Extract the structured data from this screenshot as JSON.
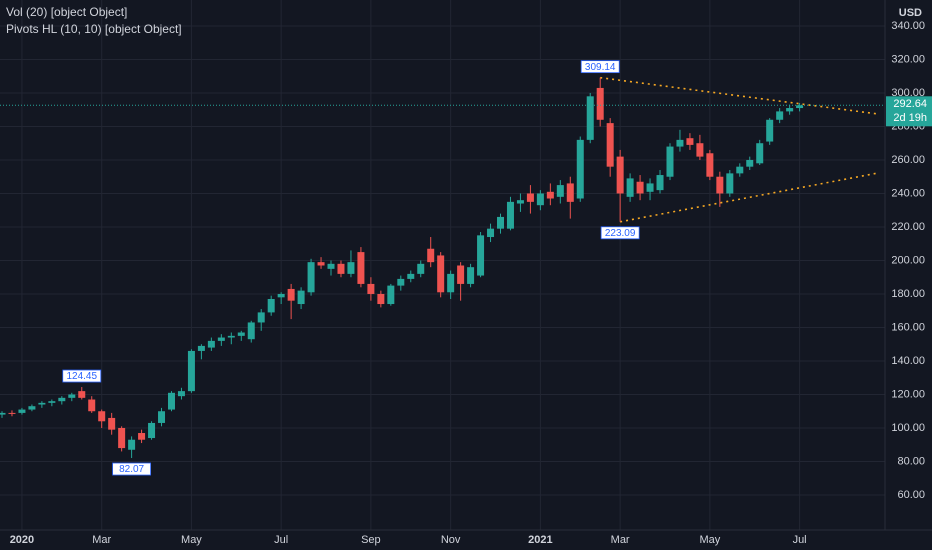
{
  "chart_data": {
    "type": "candlestick",
    "indicators": [
      "Vol (20) [object Object]",
      "Pivots HL (10, 10) [object Object]"
    ],
    "pivot_length": [
      10,
      10
    ],
    "currency": "USD",
    "countdown": "2d 19h",
    "categories": [
      null,
      null,
      "2020",
      null,
      null,
      null,
      null,
      null,
      null,
      null,
      "Mar",
      null,
      null,
      null,
      null,
      null,
      null,
      null,
      null,
      "May",
      null,
      null,
      null,
      null,
      null,
      null,
      null,
      null,
      "Jul",
      null,
      null,
      null,
      null,
      null,
      null,
      null,
      null,
      "Sep",
      null,
      null,
      null,
      null,
      null,
      null,
      null,
      "Nov",
      null,
      null,
      null,
      null,
      null,
      null,
      null,
      null,
      "2021",
      null,
      null,
      null,
      null,
      null,
      null,
      null,
      "Mar",
      null,
      null,
      null,
      null,
      null,
      null,
      null,
      null,
      "May",
      null,
      null,
      null,
      null,
      null,
      null,
      null,
      null,
      "Jul"
    ],
    "open": [
      108,
      109,
      109,
      111,
      114,
      115,
      116,
      118,
      122,
      117,
      110,
      106,
      100,
      87,
      97,
      94,
      103,
      111,
      119,
      122,
      146,
      148,
      152,
      154,
      155,
      153,
      163,
      169,
      178,
      183,
      174,
      181,
      199,
      195,
      198,
      192,
      205,
      186,
      180,
      174,
      185,
      189,
      192,
      207,
      203,
      181,
      197,
      186,
      191,
      214,
      219,
      219,
      234,
      240,
      233,
      241,
      238,
      246,
      237,
      272,
      303,
      282,
      262,
      238,
      247,
      241,
      242,
      250,
      268,
      273,
      270,
      264,
      250,
      240,
      252,
      256,
      258,
      271,
      284,
      289,
      291
    ],
    "high": [
      110,
      110.5,
      112,
      114,
      116,
      117,
      119,
      121,
      124.45,
      119,
      111,
      109,
      101,
      95,
      99,
      104,
      112,
      122,
      124,
      147,
      150,
      154,
      156,
      157,
      158,
      164,
      171,
      179,
      181,
      186,
      184,
      201,
      202,
      200,
      200,
      206,
      208,
      190,
      182,
      186,
      191,
      194,
      200,
      214,
      205,
      194,
      199,
      198,
      217,
      222,
      228,
      238,
      240,
      245,
      242,
      246,
      248,
      250,
      274,
      300,
      309.14,
      285,
      266,
      252,
      251,
      249,
      254,
      270,
      278,
      276,
      275,
      266,
      253,
      254,
      258,
      262,
      272,
      285,
      291,
      293,
      294
    ],
    "low": [
      106,
      107,
      108,
      110,
      112,
      113,
      114,
      116,
      117,
      109,
      100,
      96,
      86,
      82.07,
      91,
      93,
      101,
      110,
      117,
      121,
      141,
      146,
      149,
      150,
      152,
      151,
      158,
      167,
      174,
      165,
      171,
      179,
      195,
      191,
      190,
      190,
      184,
      176,
      172,
      173,
      182,
      187,
      190,
      196,
      178,
      177,
      176,
      184,
      190,
      211,
      216,
      218,
      229,
      228,
      230,
      233,
      234,
      225,
      235,
      270,
      280,
      250,
      223.09,
      235,
      236,
      236,
      240,
      248,
      265,
      266,
      260,
      248,
      232,
      238,
      250,
      254,
      257,
      269,
      282,
      287,
      289
    ],
    "close": [
      109,
      108.5,
      111,
      113,
      115,
      116,
      118,
      120,
      118,
      110,
      104,
      99,
      88,
      93,
      93,
      103,
      110,
      121,
      122,
      146,
      149,
      152,
      154,
      155,
      157,
      163,
      169,
      177,
      180,
      176,
      182,
      199,
      197,
      198,
      192,
      199,
      186,
      180,
      174,
      185,
      189,
      192,
      198,
      199,
      181,
      192,
      186,
      196,
      215,
      219,
      226,
      235,
      236,
      235,
      240,
      237,
      245,
      235,
      272,
      298,
      284,
      256,
      240,
      249,
      240,
      246,
      251,
      268,
      272,
      269,
      262,
      250,
      240,
      252,
      256,
      260,
      270,
      284,
      289,
      291,
      292.64
    ],
    "up_color": "#26a69a",
    "down_color": "#ef5350",
    "ylim": [
      39.1,
      355.5
    ],
    "yticks": [
      {
        "value": 60,
        "label": "60.00"
      },
      {
        "value": 80,
        "label": "80.00"
      },
      {
        "value": 100,
        "label": "100.00"
      },
      {
        "value": 120,
        "label": "120.00"
      },
      {
        "value": 140,
        "label": "140.00"
      },
      {
        "value": 160,
        "label": "160.00"
      },
      {
        "value": 180,
        "label": "180.00"
      },
      {
        "value": 200,
        "label": "200.00"
      },
      {
        "value": 220,
        "label": "220.00"
      },
      {
        "value": 240,
        "label": "240.00"
      },
      {
        "value": 260,
        "label": "260.00"
      },
      {
        "value": 280,
        "label": "280.00"
      },
      {
        "value": 300,
        "label": "300.00"
      },
      {
        "value": 320,
        "label": "320.00"
      },
      {
        "value": 340,
        "label": "340.00"
      }
    ],
    "grid": true
  }
}
